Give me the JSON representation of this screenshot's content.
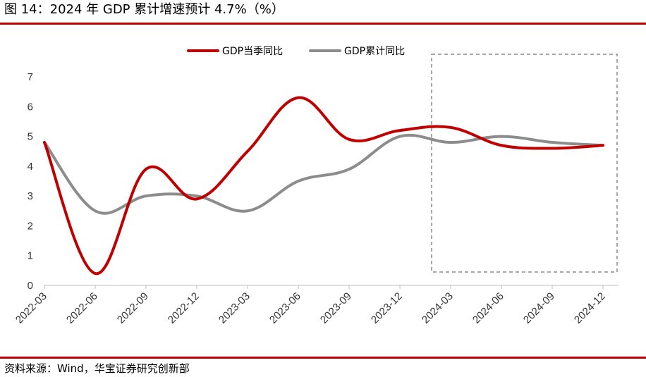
{
  "title": "图 14：2024 年 GDP 累计增速预计 4.7%（%）",
  "source": "资料来源：Wind，华宝证券研究创新部",
  "colors": {
    "accent": "#c00000",
    "series_quarterly": "#c00000",
    "series_cumulative": "#8c8c8c",
    "highlight_box": "#8c8c8c"
  },
  "chart_data": {
    "type": "line",
    "categories": [
      "2022-03",
      "2022-06",
      "2022-09",
      "2022-12",
      "2023-03",
      "2023-06",
      "2023-09",
      "2023-12",
      "2024-03",
      "2024-06",
      "2024-09",
      "2024-12"
    ],
    "series": [
      {
        "name": "GDP当季同比",
        "values": [
          4.8,
          0.4,
          3.9,
          2.9,
          4.5,
          6.3,
          4.9,
          5.2,
          5.3,
          4.7,
          4.6,
          4.7
        ],
        "color": "#c00000",
        "smooth": true
      },
      {
        "name": "GDP累计同比",
        "values": [
          4.8,
          2.5,
          3.0,
          3.0,
          2.5,
          3.5,
          3.9,
          5.0,
          4.8,
          5.0,
          4.8,
          4.7
        ],
        "color": "#8c8c8c",
        "smooth": true
      }
    ],
    "yticks": [
      0,
      1,
      2,
      3,
      4,
      5,
      6,
      7
    ],
    "ylim": [
      0,
      7
    ],
    "grid": false,
    "legend_position": "top",
    "highlight_region": {
      "from": "2024-03",
      "to": "2024-12",
      "style": "dashed-box"
    }
  }
}
